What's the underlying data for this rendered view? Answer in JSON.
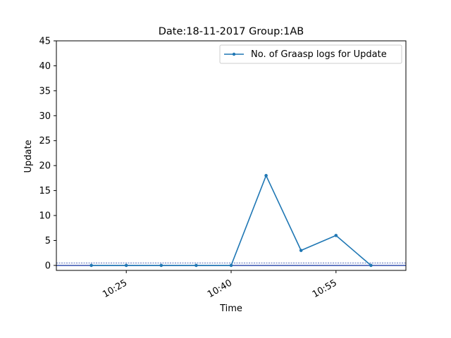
{
  "chart_data": {
    "type": "line",
    "title": "Date:18-11-2017  Group:1AB",
    "xlabel": "Time",
    "ylabel": "Update",
    "x_ticks": [
      "10:25",
      "10:40",
      "10:55"
    ],
    "y_ticks": [
      "0",
      "5",
      "10",
      "15",
      "20",
      "25",
      "30",
      "35",
      "40",
      "45"
    ],
    "ylim": [
      -1,
      45
    ],
    "xlim": [
      "10:15",
      "11:05"
    ],
    "grid": false,
    "legend_position": "top-right",
    "reference_lines": [
      {
        "y": 0,
        "style": "solid",
        "color": "#1f3fa6"
      },
      {
        "y": 0.5,
        "style": "dashed",
        "color": "#1f3fa6"
      }
    ],
    "series": [
      {
        "name": "No. of Graasp logs for Update",
        "color": "#1f77b4",
        "x": [
          "10:20",
          "10:25",
          "10:30",
          "10:35",
          "10:40",
          "10:45",
          "10:50",
          "10:55",
          "11:00"
        ],
        "values": [
          0,
          0,
          0,
          0,
          0,
          18,
          3,
          6,
          0
        ]
      }
    ]
  }
}
